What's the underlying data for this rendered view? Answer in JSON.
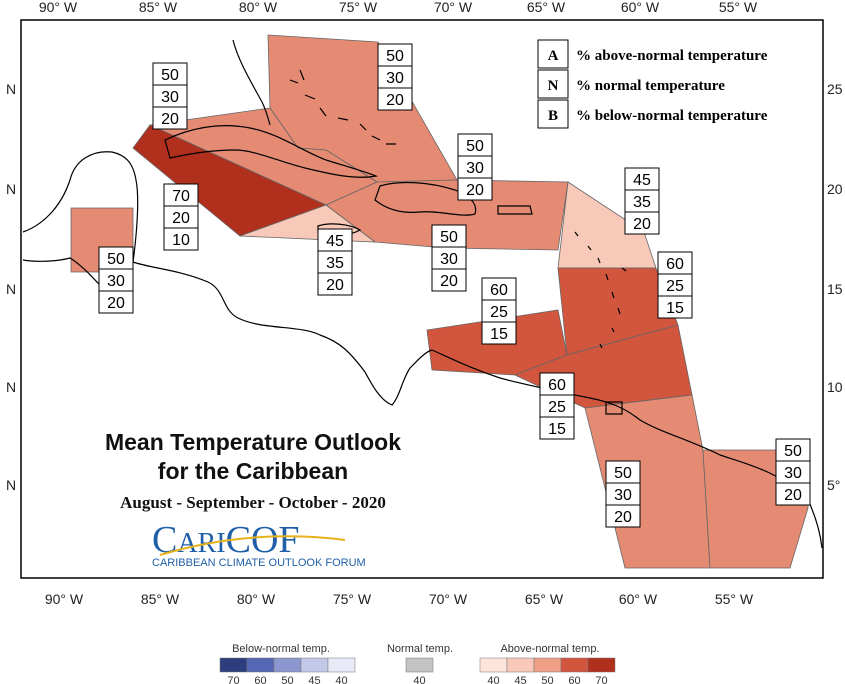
{
  "map": {
    "lon_ticks": [
      "90° W",
      "85° W",
      "80° W",
      "75° W",
      "70° W",
      "65° W",
      "60° W",
      "55° W"
    ],
    "lat_ticks_left": [
      "N",
      "N",
      "N",
      "N",
      "N"
    ],
    "lat_ticks_right": [
      "25",
      "20",
      "15",
      "10",
      "5°"
    ]
  },
  "legend_box": {
    "items": [
      {
        "key": "A",
        "desc": "% above-normal temperature"
      },
      {
        "key": "N",
        "desc": "% normal temperature"
      },
      {
        "key": "B",
        "desc": "% below-normal temperature"
      }
    ]
  },
  "regions": [
    {
      "id": "bahamas",
      "above": 50,
      "normal": 30,
      "below": 20,
      "color": "#e58b73"
    },
    {
      "id": "cuba",
      "above": 50,
      "normal": 30,
      "below": 20,
      "color": "#e58b73"
    },
    {
      "id": "hispaniola-pr",
      "above": 50,
      "normal": 30,
      "below": 20,
      "color": "#e58b73"
    },
    {
      "id": "cayman",
      "above": 70,
      "normal": 20,
      "below": 10,
      "color": "#b0301d"
    },
    {
      "id": "jamaica",
      "above": 45,
      "normal": 35,
      "below": 20,
      "color": "#f8c9b8"
    },
    {
      "id": "south-hispaniola",
      "above": 50,
      "normal": 30,
      "below": 20,
      "color": "#e58b73"
    },
    {
      "id": "belize",
      "above": 50,
      "normal": 30,
      "below": 20,
      "color": "#e58b73"
    },
    {
      "id": "leeward",
      "above": 45,
      "normal": 35,
      "below": 20,
      "color": "#f8c9b8"
    },
    {
      "id": "windward",
      "above": 60,
      "normal": 25,
      "below": 15,
      "color": "#d1563d"
    },
    {
      "id": "abc-islands",
      "above": 60,
      "normal": 25,
      "below": 15,
      "color": "#d1563d"
    },
    {
      "id": "trinidad",
      "above": 60,
      "normal": 25,
      "below": 15,
      "color": "#d1563d"
    },
    {
      "id": "guyana",
      "above": 50,
      "normal": 30,
      "below": 20,
      "color": "#e58b73"
    },
    {
      "id": "suriname-fg",
      "above": 50,
      "normal": 30,
      "below": 20,
      "color": "#e58b73"
    }
  ],
  "title": {
    "line1": "Mean Temperature Outlook",
    "line2": "for the Caribbean",
    "period": "August - September - October - 2020"
  },
  "logo": {
    "name": "CariCOF",
    "name_part1": "C",
    "name_part2": "ARI",
    "name_part3": "COF",
    "tagline": "CARIBBEAN CLIMATE OUTLOOK FORUM"
  },
  "color_scale": {
    "below_label": "Below-normal temp.",
    "normal_label": "Normal temp.",
    "above_label": "Above-normal temp.",
    "below_ticks": [
      "70",
      "60",
      "50",
      "45",
      "40"
    ],
    "normal_ticks": [
      "40"
    ],
    "above_ticks": [
      "40",
      "45",
      "50",
      "60",
      "70"
    ],
    "below_colors": [
      "#2c3e7e",
      "#5566b4",
      "#8c97cf",
      "#c2c8e8",
      "#e8ebf7"
    ],
    "normal_color": "#c4c4c4",
    "above_colors": [
      "#fde3da",
      "#f8c9b8",
      "#ee9f86",
      "#d1563d",
      "#b0301d"
    ]
  }
}
